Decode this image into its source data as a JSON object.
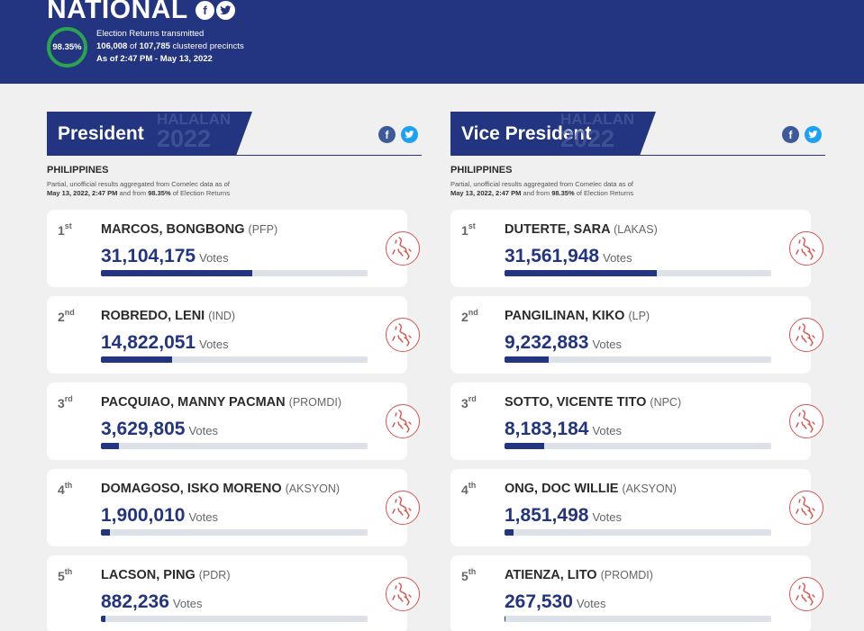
{
  "header": {
    "title": "NATIONAL",
    "facebook_icon": "f",
    "twitter_icon": "🐦",
    "percent": "98.35%",
    "line1": "Election Returns transmitted",
    "transmitted": "106,008",
    "of_word": "of",
    "total": "107,785",
    "precincts_word": "clustered precincts",
    "as_of": "As of 2:47 PM - May 13, 2022"
  },
  "panels": [
    {
      "title": "President",
      "watermark_top": "HALALAN",
      "watermark_bottom": "2022",
      "region": "PHILIPPINES",
      "note_prefix": "Partial, unofficial results aggregated from Comelec data as of",
      "note_date": "May 13, 2022, 2:47 PM",
      "note_mid": "and from",
      "note_pct": "98.35%",
      "note_suffix": "of Election Returns",
      "candidates": [
        {
          "rank": "1",
          "suffix": "st",
          "name": "MARCOS, BONGBONG",
          "party": "(PFP)",
          "votes": "31,104,175",
          "share": 0.567
        },
        {
          "rank": "2",
          "suffix": "nd",
          "name": "ROBREDO, LENI",
          "party": "(IND)",
          "votes": "14,822,051",
          "share": 0.268
        },
        {
          "rank": "3",
          "suffix": "rd",
          "name": "PACQUIAO, MANNY PACMAN",
          "party": "(PROMDI)",
          "votes": "3,629,805",
          "share": 0.066
        },
        {
          "rank": "4",
          "suffix": "th",
          "name": "DOMAGOSO, ISKO MORENO",
          "party": "(AKSYON)",
          "votes": "1,900,010",
          "share": 0.034
        },
        {
          "rank": "5",
          "suffix": "th",
          "name": "LACSON, PING",
          "party": "(PDR)",
          "votes": "882,236",
          "share": 0.016
        }
      ]
    },
    {
      "title": "Vice President",
      "watermark_top": "HALALAN",
      "watermark_bottom": "2022",
      "region": "PHILIPPINES",
      "note_prefix": "Partial, unofficial results aggregated from Comelec data as of",
      "note_date": "May 13, 2022, 2:47 PM",
      "note_mid": "and from",
      "note_pct": "98.35%",
      "note_suffix": "of Election Returns",
      "candidates": [
        {
          "rank": "1",
          "suffix": "st",
          "name": "DUTERTE, SARA",
          "party": "(LAKAS)",
          "votes": "31,561,948",
          "share": 0.571
        },
        {
          "rank": "2",
          "suffix": "nd",
          "name": "PANGILINAN, KIKO",
          "party": "(LP)",
          "votes": "9,232,883",
          "share": 0.167
        },
        {
          "rank": "3",
          "suffix": "rd",
          "name": "SOTTO, VICENTE TITO",
          "party": "(NPC)",
          "votes": "8,183,184",
          "share": 0.148
        },
        {
          "rank": "4",
          "suffix": "th",
          "name": "ONG, DOC WILLIE",
          "party": "(AKSYON)",
          "votes": "1,851,498",
          "share": 0.034
        },
        {
          "rank": "5",
          "suffix": "th",
          "name": "ATIENZA, LITO",
          "party": "(PROMDI)",
          "votes": "267,530",
          "share": 0.005
        }
      ]
    }
  ],
  "votes_label": "Votes",
  "colors": {
    "brand": "#233580",
    "ring": "#2aa44e",
    "map_icon": "#d9534f"
  },
  "icons": {
    "map": "philippines-map-icon",
    "facebook": "facebook-icon",
    "twitter": "twitter-icon"
  }
}
